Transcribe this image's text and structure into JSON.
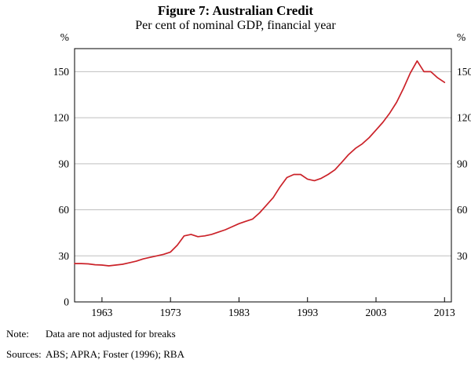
{
  "figure": {
    "title": "Figure 7: Australian Credit",
    "subtitle": "Per cent of nominal GDP, financial year",
    "note_label": "Note:",
    "note_text": "Data are not adjusted for breaks",
    "sources_label": "Sources:",
    "sources_text": "ABS; APRA; Foster (1996); RBA"
  },
  "colors": {
    "line": "#cb2229",
    "grid": "#bfbfbf",
    "axis": "#000000"
  },
  "chart_data": {
    "type": "line",
    "title": "Figure 7: Australian Credit",
    "subtitle": "Per cent of nominal GDP, financial year",
    "xlabel": "Financial year",
    "ylabel": "Per cent of nominal GDP",
    "y_unit": "%",
    "xlim": [
      1959,
      2014
    ],
    "ylim": [
      0,
      165
    ],
    "x_ticks": [
      1963,
      1973,
      1983,
      1993,
      2003,
      2013
    ],
    "y_ticks": [
      0,
      30,
      60,
      90,
      120,
      150
    ],
    "grid": "horizontal",
    "legend_position": "none",
    "x": [
      1959,
      1960,
      1961,
      1962,
      1963,
      1964,
      1965,
      1966,
      1967,
      1968,
      1969,
      1970,
      1971,
      1972,
      1973,
      1974,
      1975,
      1976,
      1977,
      1978,
      1979,
      1980,
      1981,
      1982,
      1983,
      1984,
      1985,
      1986,
      1987,
      1988,
      1989,
      1990,
      1991,
      1992,
      1993,
      1994,
      1995,
      1996,
      1997,
      1998,
      1999,
      2000,
      2001,
      2002,
      2003,
      2004,
      2005,
      2006,
      2007,
      2008,
      2009,
      2010,
      2011,
      2012,
      2013
    ],
    "series": [
      {
        "name": "Australian credit (per cent of nominal GDP)",
        "color": "#cb2229",
        "values": [
          25,
          25,
          24.8,
          24.2,
          24,
          23.5,
          24,
          24.5,
          25.5,
          26.5,
          28,
          29,
          30,
          31,
          32.5,
          37,
          43,
          44,
          42.5,
          43,
          44,
          45.5,
          47,
          49,
          51,
          52.5,
          54,
          58,
          63,
          68,
          75,
          81,
          83,
          83,
          80,
          79,
          80.5,
          83,
          86,
          91,
          96,
          100,
          103,
          107,
          112,
          117,
          123,
          130,
          139,
          149,
          157,
          150,
          150,
          146,
          143
        ]
      }
    ]
  }
}
